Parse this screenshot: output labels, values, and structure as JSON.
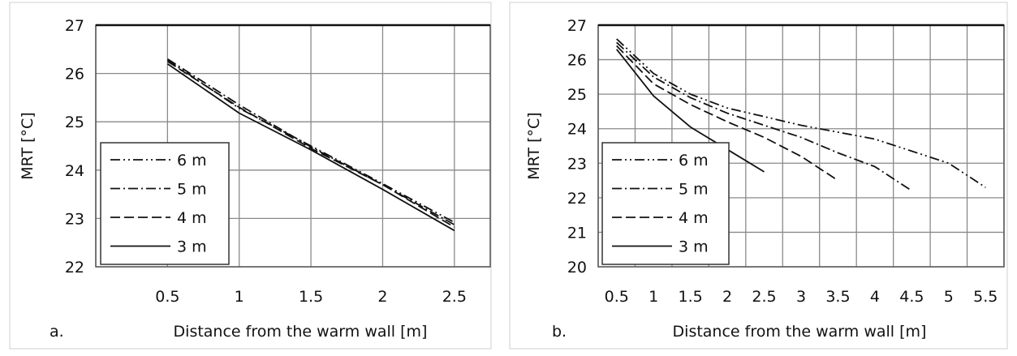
{
  "chart_data": [
    {
      "type": "line",
      "panel_label": "a.",
      "xlabel": "Distance from the warm wall   [m]",
      "ylabel": "MRT  [°C]",
      "xlim": [
        0.0,
        2.75
      ],
      "ylim": [
        22,
        27
      ],
      "xticks": [
        0.5,
        1,
        1.5,
        2,
        2.5
      ],
      "yticks": [
        22,
        23,
        24,
        25,
        26,
        27
      ],
      "grid": true,
      "legend_position": "lower-left",
      "series": [
        {
          "name": "6 m",
          "dash": "dash-dot-dot",
          "x": [
            0.5,
            1.0,
            1.5,
            2.0,
            2.5
          ],
          "y": [
            26.28,
            25.28,
            24.5,
            23.72,
            22.92
          ]
        },
        {
          "name": "5 m",
          "dash": "dash-dot",
          "x": [
            0.5,
            1.0,
            1.5,
            2.0,
            2.5
          ],
          "y": [
            26.3,
            25.35,
            24.48,
            23.7,
            22.87
          ]
        },
        {
          "name": "4 m",
          "dash": "dash",
          "x": [
            0.5,
            1.0,
            1.5,
            2.0,
            2.5
          ],
          "y": [
            26.25,
            25.3,
            24.45,
            23.7,
            22.82
          ]
        },
        {
          "name": "3 m",
          "dash": "solid",
          "x": [
            0.5,
            1.0,
            1.5,
            2.0,
            2.5
          ],
          "y": [
            26.2,
            25.18,
            24.42,
            23.6,
            22.75
          ]
        }
      ]
    },
    {
      "type": "line",
      "panel_label": "b.",
      "xlabel": "Distance from the warm wall   [m]",
      "ylabel": "MRT  [°C]",
      "xlim": [
        0.25,
        5.75
      ],
      "ylim": [
        20,
        27
      ],
      "xticks": [
        0.5,
        1,
        1.5,
        2,
        2.5,
        3,
        3.5,
        4,
        4.5,
        5,
        5.5
      ],
      "yticks": [
        20,
        21,
        22,
        23,
        24,
        25,
        26,
        27
      ],
      "grid": true,
      "legend_position": "lower-left",
      "series": [
        {
          "name": "6 m",
          "dash": "dash-dot-dot",
          "x": [
            0.5,
            1.0,
            1.5,
            2.0,
            2.5,
            3.0,
            3.5,
            4.0,
            4.5,
            5.0,
            5.5
          ],
          "y": [
            26.6,
            25.6,
            25.0,
            24.6,
            24.35,
            24.1,
            23.9,
            23.7,
            23.35,
            23.0,
            22.3
          ]
        },
        {
          "name": "5 m",
          "dash": "dash-dot",
          "x": [
            0.5,
            1.0,
            1.5,
            2.0,
            2.5,
            3.0,
            3.5,
            4.0,
            4.5
          ],
          "y": [
            26.5,
            25.5,
            24.9,
            24.45,
            24.1,
            23.75,
            23.3,
            22.9,
            22.2
          ]
        },
        {
          "name": "4 m",
          "dash": "dash",
          "x": [
            0.5,
            1.0,
            1.5,
            2.0,
            2.5,
            3.0,
            3.5
          ],
          "y": [
            26.4,
            25.3,
            24.7,
            24.2,
            23.75,
            23.2,
            22.5
          ]
        },
        {
          "name": "3 m",
          "dash": "solid",
          "x": [
            0.5,
            1.0,
            1.5,
            2.0,
            2.5
          ],
          "y": [
            26.3,
            24.95,
            24.05,
            23.4,
            22.75
          ]
        }
      ]
    }
  ]
}
